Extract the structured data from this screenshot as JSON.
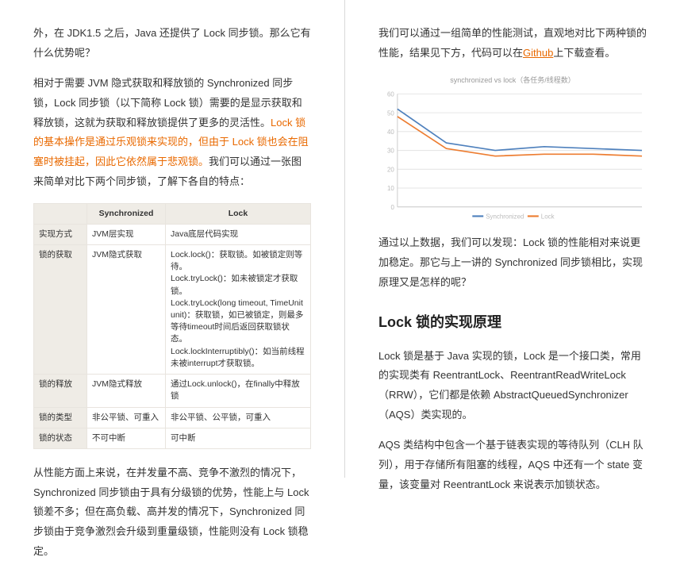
{
  "left": {
    "p1": "外，在 JDK1.5 之后，Java 还提供了 Lock 同步锁。那么它有什么优势呢？",
    "p2a": "相对于需要 JVM 隐式获取和释放锁的 Synchronized 同步锁，Lock 同步锁（以下简称 Lock 锁）需要的是显示获取和释放锁，这就为获取和释放锁提供了更多的灵活性。",
    "p2b": "Lock 锁的基本操作是通过乐观锁来实现的，但由于 Lock 锁也会在阻塞时被挂起，因此它依然属于悲观锁。",
    "p2c": "我们可以通过一张图来简单对比下两个同步锁，了解下各自的特点：",
    "table": {
      "head": [
        "",
        "Synchronized",
        "Lock"
      ],
      "rows": [
        {
          "h": "实现方式",
          "sync": "JVM层实现",
          "lock": "Java底层代码实现"
        },
        {
          "h": "锁的获取",
          "sync": "JVM隐式获取",
          "lock": "Lock.lock()：获取锁。如被锁定则等待。\nLock.tryLock()：如未被锁定才获取锁。\nLock.tryLock(long timeout, TimeUnit unit)：获取锁，如已被锁定，则最多等待timeout时间后返回获取锁状态。\nLock.lockInterruptibly()：如当前线程未被interrupt才获取锁。"
        },
        {
          "h": "锁的释放",
          "sync": "JVM隐式释放",
          "lock": "通过Lock.unlock()，在finally中释放锁"
        },
        {
          "h": "锁的类型",
          "sync": "非公平锁、可重入",
          "lock": "非公平锁、公平锁，可重入"
        },
        {
          "h": "锁的状态",
          "sync": "不可中断",
          "lock": "可中断"
        }
      ]
    },
    "p3": "从性能方面上来说，在并发量不高、竞争不激烈的情况下，Synchronized 同步锁由于具有分级锁的优势，性能上与 Lock 锁差不多；但在高负载、高并发的情况下，Synchronized 同步锁由于竞争激烈会升级到重量级锁，性能则没有 Lock 锁稳定。"
  },
  "right": {
    "p1a": "我们可以通过一组简单的性能测试，直观地对比下两种锁的性能，结果见下方，代码可以在",
    "p1link": "Github",
    "p1b": "上下载查看。",
    "chart": {
      "title": "synchronized vs lock（各任务/线程数）",
      "y_ticks": [
        0,
        10,
        20,
        30,
        40,
        50,
        60
      ],
      "x_count": 6,
      "series": [
        {
          "name": "Synchronized",
          "color": "#4f81bd",
          "values": [
            52,
            34,
            30,
            32,
            31,
            30
          ]
        },
        {
          "name": "Lock",
          "color": "#ed7d31",
          "values": [
            48,
            31,
            27,
            28,
            28,
            27
          ]
        }
      ],
      "ylim": [
        0,
        60
      ],
      "background": "#ffffff",
      "grid_color": "#e6e6e6"
    },
    "p2": "通过以上数据，我们可以发现：Lock 锁的性能相对来说更加稳定。那它与上一讲的 Synchronized 同步锁相比，实现原理又是怎样的呢？",
    "h2": "Lock 锁的实现原理",
    "p3": "Lock 锁是基于 Java 实现的锁，Lock 是一个接口类，常用的实现类有 ReentrantLock、ReentrantReadWriteLock（RRW），它们都是依赖 AbstractQueuedSynchronizer（AQS）类实现的。",
    "p4": "AQS 类结构中包含一个基于链表实现的等待队列（CLH 队列），用于存储所有阻塞的线程，AQS 中还有一个 state 变量，该变量对 ReentrantLock 来说表示加锁状态。"
  }
}
